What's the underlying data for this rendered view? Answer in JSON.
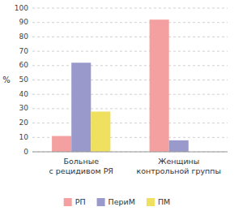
{
  "chart_data": {
    "type": "bar",
    "categories": [
      "Больные\nс рецидивом РЯ",
      "Женщины\nконтрольной группы"
    ],
    "series": [
      {
        "name": "РП",
        "color": "#f4a0a0",
        "values": [
          11,
          92
        ]
      },
      {
        "name": "ПериМ",
        "color": "#9999cc",
        "values": [
          62,
          8
        ]
      },
      {
        "name": "ПМ",
        "color": "#f0e060",
        "values": [
          28,
          0
        ]
      }
    ],
    "ylabel": "%",
    "ylim": [
      0,
      100
    ],
    "yticks": [
      0,
      10,
      20,
      30,
      40,
      50,
      60,
      70,
      80,
      90,
      100
    ],
    "grid": true,
    "legend": "bottom"
  }
}
